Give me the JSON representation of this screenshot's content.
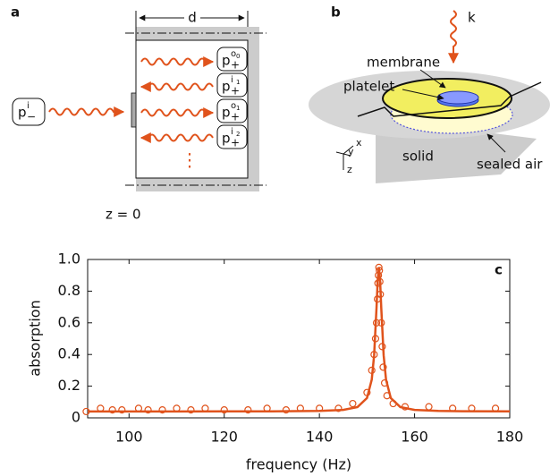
{
  "panel_a": {
    "label": "a",
    "width_label": "d",
    "origin_label": "z = 0",
    "incident": {
      "main": "p",
      "sup": "i",
      "sub": "−"
    },
    "boxes": [
      {
        "main": "p",
        "sup": "o",
        "sup_sub": "0",
        "sub": "+"
      },
      {
        "main": "p",
        "sup": "i",
        "sup_sub": "1",
        "sub": "+"
      },
      {
        "main": "p",
        "sup": "o",
        "sup_sub": "1",
        "sub": "+"
      },
      {
        "main": "p",
        "sup": "i",
        "sup_sub": "2",
        "sub": "+"
      }
    ],
    "continuation": "⋮"
  },
  "panel_b": {
    "label": "b",
    "wave_label": "k",
    "membrane": "membrane",
    "platelet": "platelet",
    "solid": "solid",
    "sealed_air": "sealed air",
    "axis_x": "x",
    "axis_y": "y",
    "axis_z": "z"
  },
  "chart_data": {
    "type": "scatter",
    "panel_label": "c",
    "xlabel": "frequency (Hz)",
    "ylabel": "absorption",
    "xlim": [
      91.3,
      180
    ],
    "xticks": [
      100,
      120,
      140,
      160,
      180
    ],
    "ylim": [
      0,
      1
    ],
    "yticks": [
      0,
      0.2,
      0.4,
      0.6,
      0.8,
      {
        "value": 1,
        "label": "1.0"
      }
    ],
    "series": [
      {
        "type": "line",
        "color": "#e0531c",
        "x": [
          91.3,
          100,
          110,
          120,
          130,
          140,
          145,
          148,
          150,
          151,
          151.5,
          152,
          152.25,
          152.5,
          152.75,
          153,
          153.5,
          154,
          155,
          157,
          160,
          165,
          170,
          180
        ],
        "values": [
          0.04,
          0.04,
          0.04,
          0.041,
          0.041,
          0.044,
          0.05,
          0.068,
          0.125,
          0.241,
          0.395,
          0.694,
          0.869,
          0.95,
          0.869,
          0.694,
          0.395,
          0.241,
          0.125,
          0.068,
          0.05,
          0.044,
          0.042,
          0.041
        ]
      },
      {
        "type": "scatter",
        "color": "#e0531c",
        "x": [
          91,
          94,
          96.5,
          98.5,
          102,
          104,
          107,
          110,
          113,
          116,
          120,
          125,
          129,
          133,
          136,
          140,
          144,
          147,
          150,
          151,
          151.5,
          151.8,
          152,
          152.2,
          152.3,
          152.4,
          152.5,
          152.6,
          152.7,
          152.8,
          153,
          153.2,
          153.4,
          153.7,
          154.2,
          155.5,
          158,
          163,
          168,
          172,
          177
        ],
        "values": [
          0.04,
          0.06,
          0.05,
          0.05,
          0.06,
          0.05,
          0.05,
          0.06,
          0.05,
          0.06,
          0.05,
          0.05,
          0.06,
          0.05,
          0.06,
          0.06,
          0.06,
          0.09,
          0.16,
          0.3,
          0.4,
          0.5,
          0.6,
          0.75,
          0.85,
          0.9,
          0.95,
          0.93,
          0.86,
          0.78,
          0.6,
          0.45,
          0.32,
          0.22,
          0.14,
          0.09,
          0.07,
          0.07,
          0.06,
          0.06,
          0.06
        ]
      }
    ]
  }
}
